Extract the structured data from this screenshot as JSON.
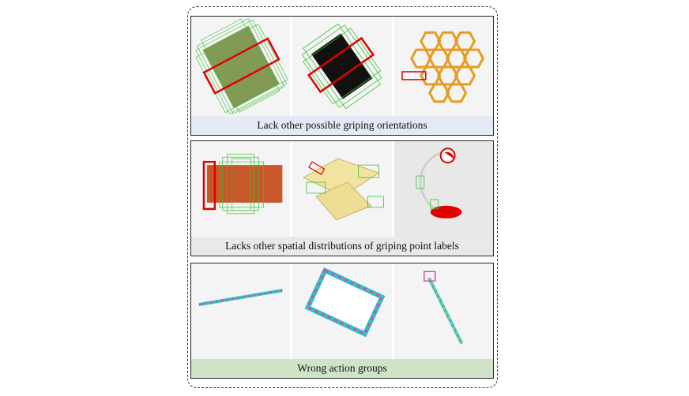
{
  "panels": [
    {
      "caption": "Lack other possible griping orientations",
      "caption_bg": "#e3eaf3"
    },
    {
      "caption": "Lacks other spatial distributions of griping point labels",
      "caption_bg": "#e9e9e9"
    },
    {
      "caption": "Wrong action groups",
      "caption_bg": "#cfe3c8"
    }
  ],
  "colors": {
    "grasp_label": "#2fbf2f",
    "wrong_grasp": "#e00000",
    "border": "#222222"
  }
}
